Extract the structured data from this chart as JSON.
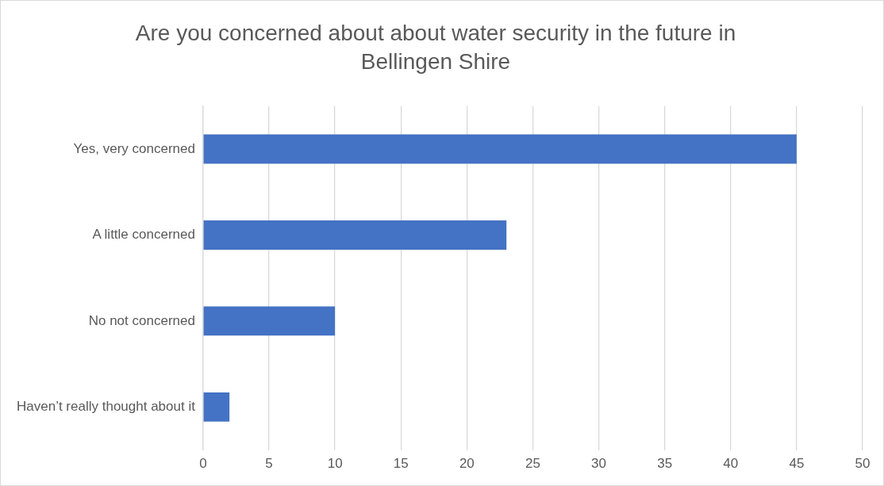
{
  "chart_data": {
    "type": "bar",
    "orientation": "horizontal",
    "title": "Are you concerned about about water security in the future in Bellingen Shire",
    "categories": [
      "Yes, very concerned",
      "A little concerned",
      "No not concerned",
      "Haven’t really thought about it"
    ],
    "values": [
      45,
      23,
      10,
      2
    ],
    "color": "#4472c4",
    "xlim": [
      0,
      50
    ],
    "xticks": [
      0,
      5,
      10,
      15,
      20,
      25,
      30,
      35,
      40,
      45,
      50
    ],
    "grid": "x",
    "legend": false
  }
}
